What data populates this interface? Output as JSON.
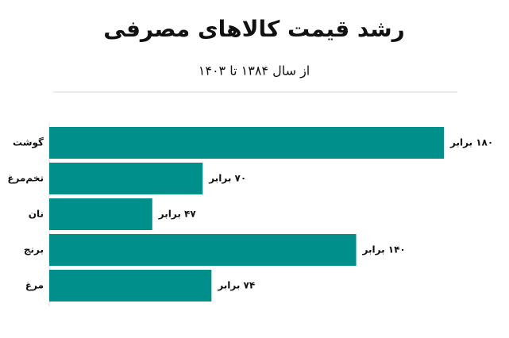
{
  "chart_data": {
    "type": "hbar",
    "title": "رشد قیمت کالاهای مصرفی",
    "subtitle": "از سال ۱۳۸۴ تا ۱۴۰۳",
    "categories": [
      "گوشت",
      "تخم‌مرغ",
      "نان",
      "برنج",
      "مرغ"
    ],
    "values": [
      180,
      70,
      47,
      140,
      74
    ],
    "value_labels": [
      "۱۸۰ برابر",
      "۷۰ برابر",
      "۴۷ برابر",
      "۱۴۰ برابر",
      "۷۴ برابر"
    ],
    "color": "#008f8a"
  }
}
